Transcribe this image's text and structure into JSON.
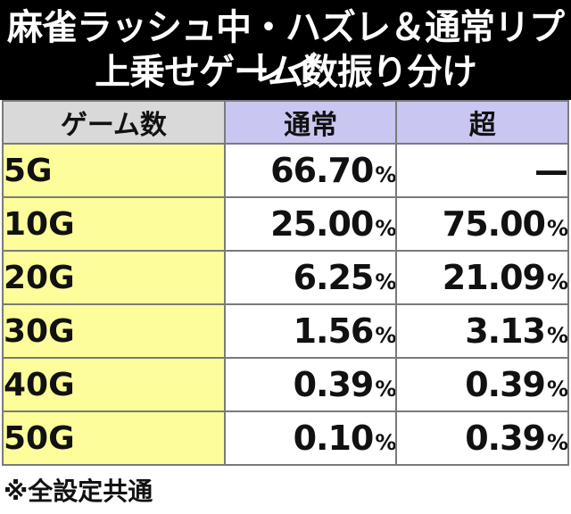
{
  "title": {
    "line1": "麻雀ラッシュ中・ハズレ＆通常リプレイ",
    "line2": "上乗せゲーム数振り分け"
  },
  "table": {
    "headers": [
      "ゲーム数",
      "通常",
      "超"
    ],
    "rows": [
      {
        "games": "5G",
        "normal": "66.70",
        "super": "—"
      },
      {
        "games": "10G",
        "normal": "25.00",
        "super": "75.00"
      },
      {
        "games": "20G",
        "normal": "6.25",
        "super": "21.09"
      },
      {
        "games": "30G",
        "normal": "1.56",
        "super": "3.13"
      },
      {
        "games": "40G",
        "normal": "0.39",
        "super": "0.39"
      },
      {
        "games": "50G",
        "normal": "0.10",
        "super": "0.39"
      }
    ],
    "unit": "%"
  },
  "footnote": "※全設定共通",
  "colors": {
    "header_bg": "#000000",
    "games_col": "#fdfd9b",
    "col_header": "#c9c6f2",
    "games_header": "#d9d9d9"
  }
}
